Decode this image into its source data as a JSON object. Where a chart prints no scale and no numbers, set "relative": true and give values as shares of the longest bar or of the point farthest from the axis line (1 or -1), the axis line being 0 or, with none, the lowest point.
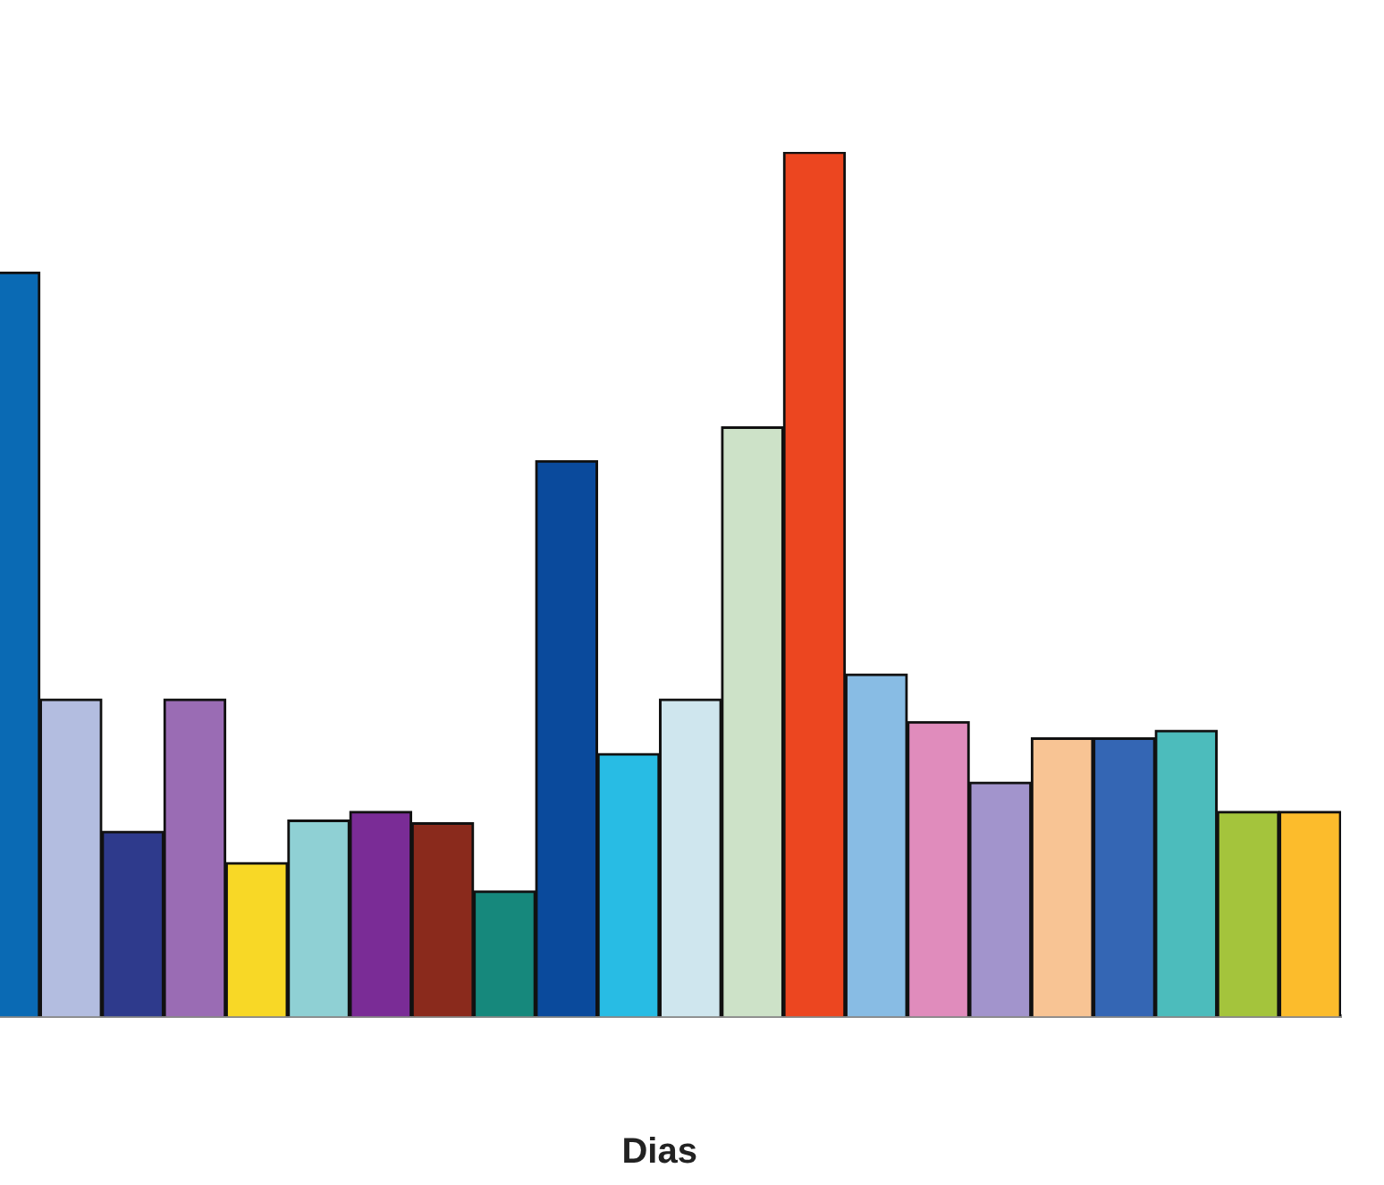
{
  "chart_data": {
    "type": "bar",
    "relative": true,
    "xlabel": "Dias",
    "categories": [
      null,
      null,
      null,
      null,
      null,
      null,
      null,
      null,
      null,
      null,
      null,
      null,
      null,
      null,
      null,
      null,
      null,
      null,
      null,
      null,
      null,
      null
    ],
    "values": [
      0.861,
      0.367,
      0.214,
      0.367,
      0.178,
      0.227,
      0.237,
      0.224,
      0.145,
      0.643,
      0.304,
      0.367,
      0.682,
      1,
      0.396,
      0.341,
      0.271,
      0.322,
      0.322,
      0.331,
      0.237,
      0.237
    ],
    "colors": [
      "#0a6ab4",
      "#b3bde0",
      "#2e3a8c",
      "#9a6cb4",
      "#f8d826",
      "#8fd0d4",
      "#7a2c96",
      "#8a2a1c",
      "#16887c",
      "#0a4a9c",
      "#28bce4",
      "#cfe6ee",
      "#cde2c8",
      "#ec4620",
      "#88bce4",
      "#e08cbc",
      "#a294cc",
      "#f8c494",
      "#3466b4",
      "#4cbcbc",
      "#a4c43c",
      "#fcbc2c"
    ],
    "grid": false,
    "legend": false
  }
}
